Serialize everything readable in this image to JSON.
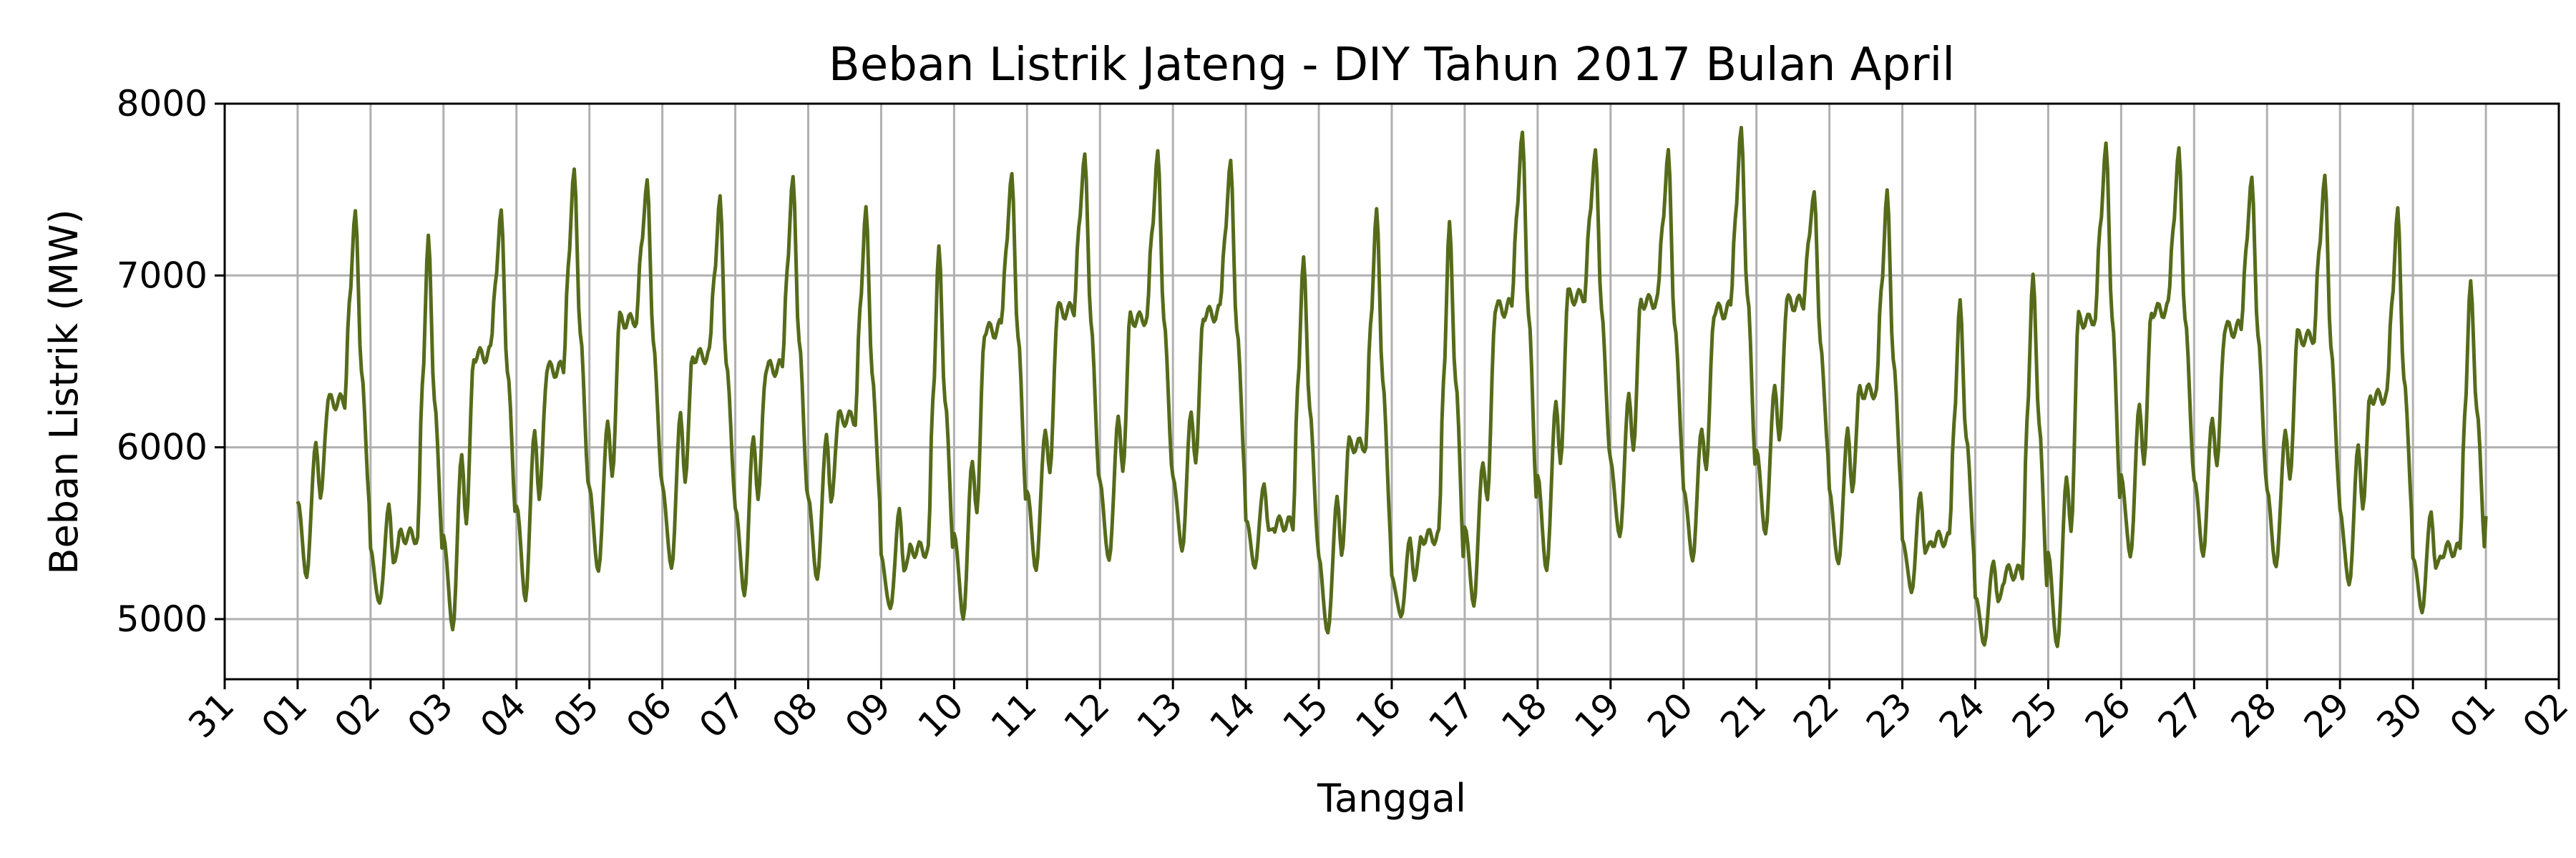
{
  "chart_data": {
    "type": "line",
    "title": "Beban Listrik Jateng - DIY Tahun 2017 Bulan April",
    "xlabel": "Tanggal",
    "ylabel": "Beban Listrik (MW)",
    "ylim": [
      4650,
      8000
    ],
    "xlim": [
      "2017-03-31",
      "2017-05-02"
    ],
    "grid": true,
    "line_color": "#556b1a",
    "y_ticks": [
      5000,
      6000,
      7000,
      8000
    ],
    "x_ticks": [
      {
        "date": "2017-03-31",
        "label": "31"
      },
      {
        "date": "2017-04-01",
        "label": "01"
      },
      {
        "date": "2017-04-02",
        "label": "02"
      },
      {
        "date": "2017-04-03",
        "label": "03"
      },
      {
        "date": "2017-04-04",
        "label": "04"
      },
      {
        "date": "2017-04-05",
        "label": "05"
      },
      {
        "date": "2017-04-06",
        "label": "06"
      },
      {
        "date": "2017-04-07",
        "label": "07"
      },
      {
        "date": "2017-04-08",
        "label": "08"
      },
      {
        "date": "2017-04-09",
        "label": "09"
      },
      {
        "date": "2017-04-10",
        "label": "10"
      },
      {
        "date": "2017-04-11",
        "label": "11"
      },
      {
        "date": "2017-04-12",
        "label": "12"
      },
      {
        "date": "2017-04-13",
        "label": "13"
      },
      {
        "date": "2017-04-14",
        "label": "14"
      },
      {
        "date": "2017-04-15",
        "label": "15"
      },
      {
        "date": "2017-04-16",
        "label": "16"
      },
      {
        "date": "2017-04-17",
        "label": "17"
      },
      {
        "date": "2017-04-18",
        "label": "18"
      },
      {
        "date": "2017-04-19",
        "label": "19"
      },
      {
        "date": "2017-04-20",
        "label": "20"
      },
      {
        "date": "2017-04-21",
        "label": "21"
      },
      {
        "date": "2017-04-22",
        "label": "22"
      },
      {
        "date": "2017-04-23",
        "label": "23"
      },
      {
        "date": "2017-04-24",
        "label": "24"
      },
      {
        "date": "2017-04-25",
        "label": "25"
      },
      {
        "date": "2017-04-26",
        "label": "26"
      },
      {
        "date": "2017-04-27",
        "label": "27"
      },
      {
        "date": "2017-04-28",
        "label": "28"
      },
      {
        "date": "2017-04-29",
        "label": "29"
      },
      {
        "date": "2017-04-30",
        "label": "30"
      },
      {
        "date": "2017-05-01",
        "label": "01"
      },
      {
        "date": "2017-05-02",
        "label": "02"
      }
    ],
    "series": [
      {
        "daily_points": [
          {
            "date": "2017-04-01",
            "min": 5250,
            "early_peak": 6040,
            "mid_plateau": 6270,
            "evening_peak": 7390
          },
          {
            "date": "2017-04-02",
            "min": 5080,
            "early_peak": 5660,
            "mid_plateau": 5480,
            "evening_peak": 7230
          },
          {
            "date": "2017-04-03",
            "min": 4940,
            "early_peak": 5950,
            "mid_plateau": 6550,
            "evening_peak": 7370
          },
          {
            "date": "2017-04-04",
            "min": 5120,
            "early_peak": 6110,
            "mid_plateau": 6460,
            "evening_peak": 7630
          },
          {
            "date": "2017-04-05",
            "min": 5270,
            "early_peak": 6150,
            "mid_plateau": 6750,
            "evening_peak": 7560
          },
          {
            "date": "2017-04-06",
            "min": 5290,
            "early_peak": 6190,
            "mid_plateau": 6540,
            "evening_peak": 7450
          },
          {
            "date": "2017-04-07",
            "min": 5150,
            "early_peak": 6070,
            "mid_plateau": 6470,
            "evening_peak": 7580
          },
          {
            "date": "2017-04-08",
            "min": 5230,
            "early_peak": 6080,
            "mid_plateau": 6170,
            "evening_peak": 7410
          },
          {
            "date": "2017-04-09",
            "min": 5050,
            "early_peak": 5630,
            "mid_plateau": 5400,
            "evening_peak": 7160
          },
          {
            "date": "2017-04-10",
            "min": 5010,
            "early_peak": 5920,
            "mid_plateau": 6700,
            "evening_peak": 7590
          },
          {
            "date": "2017-04-11",
            "min": 5290,
            "early_peak": 6110,
            "mid_plateau": 6810,
            "evening_peak": 7720
          },
          {
            "date": "2017-04-12",
            "min": 5330,
            "early_peak": 6170,
            "mid_plateau": 6760,
            "evening_peak": 7720
          },
          {
            "date": "2017-04-13",
            "min": 5400,
            "early_peak": 6200,
            "mid_plateau": 6790,
            "evening_peak": 7660
          },
          {
            "date": "2017-04-14",
            "min": 5310,
            "early_peak": 5800,
            "mid_plateau": 5550,
            "evening_peak": 7120
          },
          {
            "date": "2017-04-15",
            "min": 4910,
            "early_peak": 5710,
            "mid_plateau": 6020,
            "evening_peak": 7390
          },
          {
            "date": "2017-04-16",
            "min": 5010,
            "early_peak": 5460,
            "mid_plateau": 5480,
            "evening_peak": 7300
          },
          {
            "date": "2017-04-17",
            "min": 5090,
            "early_peak": 5920,
            "mid_plateau": 6830,
            "evening_peak": 7840
          },
          {
            "date": "2017-04-18",
            "min": 5280,
            "early_peak": 6270,
            "mid_plateau": 6890,
            "evening_peak": 7740
          },
          {
            "date": "2017-04-19",
            "min": 5470,
            "early_peak": 6300,
            "mid_plateau": 6860,
            "evening_peak": 7720
          },
          {
            "date": "2017-04-20",
            "min": 5350,
            "early_peak": 6110,
            "mid_plateau": 6810,
            "evening_peak": 7860
          },
          {
            "date": "2017-04-21",
            "min": 5500,
            "early_peak": 6370,
            "mid_plateau": 6850,
            "evening_peak": 7500
          },
          {
            "date": "2017-04-22",
            "min": 5310,
            "early_peak": 6100,
            "mid_plateau": 6330,
            "evening_peak": 7490
          },
          {
            "date": "2017-04-23",
            "min": 5160,
            "early_peak": 5730,
            "mid_plateau": 5460,
            "evening_peak": 6850
          },
          {
            "date": "2017-04-24",
            "min": 4860,
            "early_peak": 5350,
            "mid_plateau": 5270,
            "evening_peak": 7020
          },
          {
            "date": "2017-04-25",
            "min": 4830,
            "early_peak": 5820,
            "mid_plateau": 6760,
            "evening_peak": 7770
          },
          {
            "date": "2017-04-26",
            "min": 5360,
            "early_peak": 6240,
            "mid_plateau": 6810,
            "evening_peak": 7730
          },
          {
            "date": "2017-04-27",
            "min": 5380,
            "early_peak": 6180,
            "mid_plateau": 6700,
            "evening_peak": 7580
          },
          {
            "date": "2017-04-28",
            "min": 5300,
            "early_peak": 6100,
            "mid_plateau": 6650,
            "evening_peak": 7590
          },
          {
            "date": "2017-04-29",
            "min": 5190,
            "early_peak": 6000,
            "mid_plateau": 6300,
            "evening_peak": 7380
          },
          {
            "date": "2017-04-30",
            "min": 5050,
            "early_peak": 5630,
            "mid_plateau": 5400,
            "evening_peak": 6970
          }
        ],
        "end_point": {
          "date": "2017-05-01",
          "value": 5600
        }
      }
    ]
  }
}
